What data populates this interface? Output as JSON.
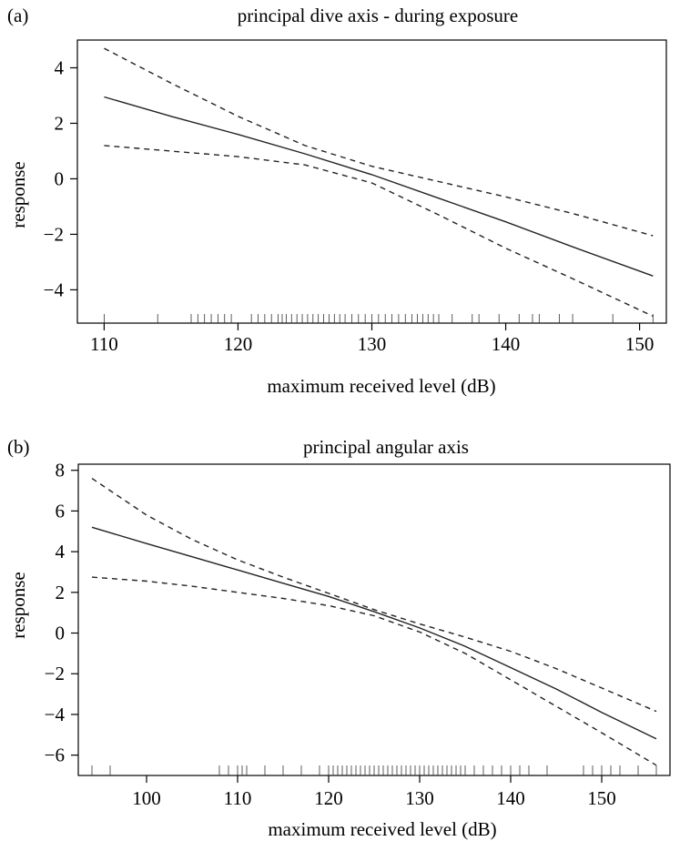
{
  "chart_data": [
    {
      "panel_label": "(a)",
      "type": "line",
      "title": "principal dive axis - during exposure",
      "xlabel": "maximum received level (dB)",
      "ylabel": "response",
      "xlim": [
        108,
        152
      ],
      "ylim": [
        -5.2,
        5
      ],
      "xticks": [
        110,
        120,
        130,
        140,
        150
      ],
      "yticks": [
        -4,
        -2,
        0,
        2,
        4
      ],
      "ytick_labels": [
        "−4",
        "−2",
        "0",
        "2",
        "4"
      ],
      "grid": false,
      "series": [
        {
          "role": "fit",
          "style": "solid",
          "x": [
            110,
            115,
            120,
            125,
            130,
            135,
            140,
            145,
            151
          ],
          "y": [
            2.95,
            2.25,
            1.6,
            0.9,
            0.15,
            -0.7,
            -1.55,
            -2.45,
            -3.5
          ]
        },
        {
          "role": "upper",
          "style": "dashed",
          "x": [
            110,
            115,
            120,
            125,
            130,
            135,
            140,
            145,
            151
          ],
          "y": [
            4.7,
            3.45,
            2.25,
            1.2,
            0.45,
            -0.1,
            -0.65,
            -1.25,
            -2.05
          ]
        },
        {
          "role": "lower",
          "style": "dashed",
          "x": [
            110,
            115,
            120,
            125,
            130,
            135,
            140,
            145,
            151
          ],
          "y": [
            1.2,
            1.0,
            0.8,
            0.5,
            -0.15,
            -1.3,
            -2.5,
            -3.6,
            -4.95
          ]
        }
      ],
      "rug": [
        110,
        114,
        116.5,
        117,
        117.5,
        118,
        118.5,
        119,
        119.5,
        121,
        121.5,
        122,
        122.5,
        123,
        123.3,
        123.6,
        124,
        124.4,
        124.8,
        125.2,
        125.6,
        126,
        126.4,
        126.8,
        127.2,
        127.6,
        128,
        128.5,
        129,
        129.5,
        130,
        130.5,
        131,
        131.5,
        132,
        132.5,
        133,
        133.4,
        133.8,
        134.2,
        134.6,
        135,
        136,
        137.5,
        138,
        139.5,
        141,
        142,
        142.5,
        144,
        145,
        148,
        151
      ]
    },
    {
      "panel_label": "(b)",
      "type": "line",
      "title": "principal angular axis",
      "xlabel": "maximum received level (dB)",
      "ylabel": "response",
      "xlim": [
        92.5,
        157.5
      ],
      "ylim": [
        -7,
        8.3
      ],
      "xticks": [
        100,
        110,
        120,
        130,
        140,
        150
      ],
      "yticks": [
        -6,
        -4,
        -2,
        0,
        2,
        4,
        6,
        8
      ],
      "ytick_labels": [
        "−6",
        "−4",
        "−2",
        "0",
        "2",
        "4",
        "6",
        "8"
      ],
      "grid": false,
      "series": [
        {
          "role": "fit",
          "style": "solid",
          "x": [
            94,
            100,
            105,
            110,
            115,
            120,
            125,
            130,
            135,
            140,
            145,
            150,
            156
          ],
          "y": [
            5.2,
            4.4,
            3.75,
            3.1,
            2.45,
            1.8,
            1.05,
            0.25,
            -0.65,
            -1.7,
            -2.75,
            -3.9,
            -5.2
          ]
        },
        {
          "role": "upper",
          "style": "dashed",
          "x": [
            94,
            100,
            105,
            110,
            115,
            120,
            125,
            130,
            135,
            140,
            145,
            150,
            156
          ],
          "y": [
            7.6,
            5.8,
            4.6,
            3.6,
            2.75,
            1.95,
            1.15,
            0.45,
            -0.2,
            -0.9,
            -1.75,
            -2.7,
            -3.85
          ]
        },
        {
          "role": "lower",
          "style": "dashed",
          "x": [
            94,
            100,
            105,
            110,
            115,
            120,
            125,
            130,
            135,
            140,
            145,
            150,
            156
          ],
          "y": [
            2.75,
            2.55,
            2.3,
            2.0,
            1.7,
            1.35,
            0.85,
            0.05,
            -1.0,
            -2.3,
            -3.6,
            -4.9,
            -6.5
          ]
        }
      ],
      "rug": [
        94,
        96,
        108,
        109,
        110,
        110.5,
        111,
        113,
        115,
        117,
        119,
        120,
        120.5,
        121,
        121.5,
        122,
        122.5,
        123,
        123.5,
        124,
        124.5,
        125,
        125.5,
        126,
        126.5,
        127,
        127.5,
        128,
        128.5,
        129,
        129.5,
        130,
        130.5,
        131,
        131.5,
        132,
        132.5,
        133,
        133.5,
        134,
        134.5,
        135,
        136,
        137,
        138,
        139,
        140,
        141,
        142,
        144,
        148,
        149,
        150,
        151,
        152,
        154,
        156
      ]
    }
  ]
}
